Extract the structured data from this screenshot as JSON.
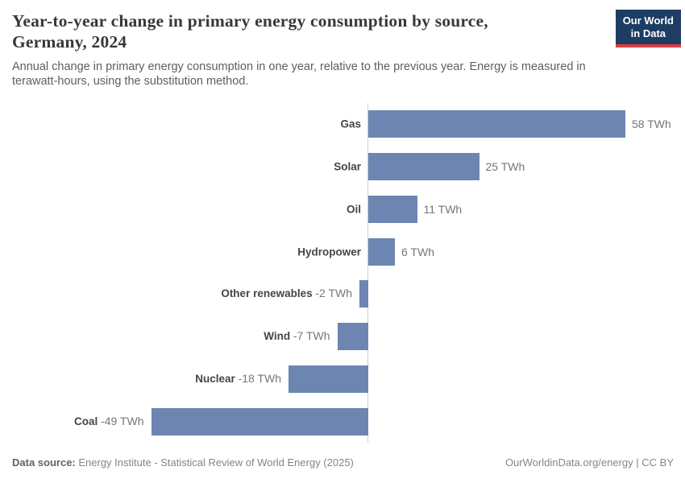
{
  "header": {
    "title_line1": "Year-to-year change in primary energy consumption by source,",
    "title_line2": "Germany, 2024",
    "subtitle": "Annual change in primary energy consumption in one year, relative to the previous year. Energy is measured in terawatt-hours, using the substitution method.",
    "logo": {
      "line1": "Our World",
      "line2": "in Data"
    }
  },
  "footer": {
    "datasource_label": "Data source:",
    "datasource_value": " Energy Institute - Statistical Review of World Energy (2025)",
    "link": "OurWorldinData.org/energy | CC BY"
  },
  "colors": {
    "bar": "#6d85b1",
    "zero_line": "#cfcfcf",
    "logo_bg": "#1d3d63",
    "logo_underline": "#dc3e3e"
  },
  "chart_data": {
    "type": "bar",
    "orientation": "horizontal",
    "title": "Year-to-year change in primary energy consumption by source, Germany, 2024",
    "unit": "TWh",
    "categories": [
      "Gas",
      "Solar",
      "Oil",
      "Hydropower",
      "Other renewables",
      "Wind",
      "Nuclear",
      "Coal"
    ],
    "values": [
      58,
      25,
      11,
      6,
      -2,
      -7,
      -18,
      -49
    ],
    "value_labels": [
      "58 TWh",
      "25 TWh",
      "11 TWh",
      "6 TWh",
      "-2 TWh",
      "-7 TWh",
      "-18 TWh",
      "-49 TWh"
    ],
    "xlim": [
      -60,
      70
    ],
    "zero_line": true,
    "grid": false,
    "legend": false
  }
}
